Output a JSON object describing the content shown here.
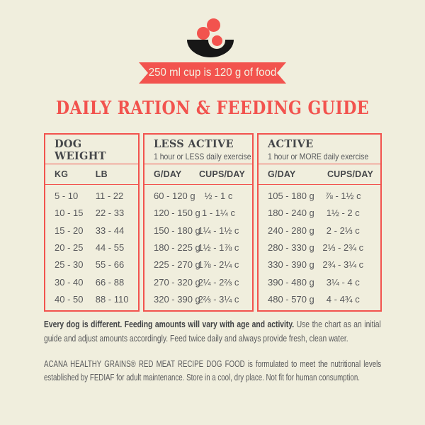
{
  "colors": {
    "background": "#f0eedd",
    "accent_red": "#f2534e",
    "dark_text": "#45474a",
    "body_text": "#57585b",
    "bowl_black": "#171717"
  },
  "icon": {
    "name": "dog-food-bowl-with-kibble"
  },
  "ribbon": {
    "text": "250 ml cup is 120 g of food"
  },
  "title": "DAILY RATION & FEEDING GUIDE",
  "table": {
    "weight_header": {
      "line1": "DOG",
      "line2": "WEIGHT"
    },
    "less_active": {
      "title": "LESS ACTIVE",
      "subtitle": "1 hour or LESS daily exercise"
    },
    "active": {
      "title": "ACTIVE",
      "subtitle": "1 hour or MORE daily exercise"
    },
    "sub_headers": {
      "kg": "KG",
      "lb": "LB",
      "gday": "G/DAY",
      "cups": "CUPS/DAY"
    },
    "rows": [
      {
        "kg": "5 - 10",
        "lb": "11 - 22",
        "la_g": "60 - 120 g",
        "la_c": "½ - 1 c",
        "a_g": "105 - 180 g",
        "a_c": "⅞ - 1½ c"
      },
      {
        "kg": "10 - 15",
        "lb": "22 - 33",
        "la_g": "120 - 150 g",
        "la_c": "1 - 1¼ c",
        "a_g": "180 - 240 g",
        "a_c": "1½ - 2 c"
      },
      {
        "kg": "15 - 20",
        "lb": "33 - 44",
        "la_g": "150 - 180 g",
        "la_c": "1¼ - 1½ c",
        "a_g": "240 - 280 g",
        "a_c": "2 - 2⅓ c"
      },
      {
        "kg": "20 - 25",
        "lb": "44 - 55",
        "la_g": "180 - 225 g",
        "la_c": "1½ - 1⅞ c",
        "a_g": "280 - 330 g",
        "a_c": "2⅓ - 2¾ c"
      },
      {
        "kg": "25 - 30",
        "lb": "55 - 66",
        "la_g": "225 - 270 g",
        "la_c": "1⅞ - 2¼ c",
        "a_g": "330 - 390 g",
        "a_c": "2¾ - 3¼ c"
      },
      {
        "kg": "30 - 40",
        "lb": "66 - 88",
        "la_g": "270 - 320 g",
        "la_c": "2¼ - 2⅔ c",
        "a_g": "390 - 480 g",
        "a_c": "3¼ - 4 c"
      },
      {
        "kg": "40 - 50",
        "lb": "88 - 110",
        "la_g": "320 - 390 g",
        "la_c": "2⅔ - 3¼ c",
        "a_g": "480 - 570 g",
        "a_c": "4 - 4¾ c"
      }
    ]
  },
  "notes": {
    "feeding_bold": "Every dog is different. Feeding amounts will vary with age and activity.",
    "feeding_rest": " Use the chart as an initial guide and adjust amounts accordingly. Feed twice daily and always provide fresh, clean water.",
    "disclaimer": "ACANA HEALTHY GRAINS® RED MEAT RECIPE DOG FOOD is formulated to meet the nutritional levels established by FEDIAF for adult maintenance. Store in a cool, dry place. Not fit for human consumption."
  }
}
